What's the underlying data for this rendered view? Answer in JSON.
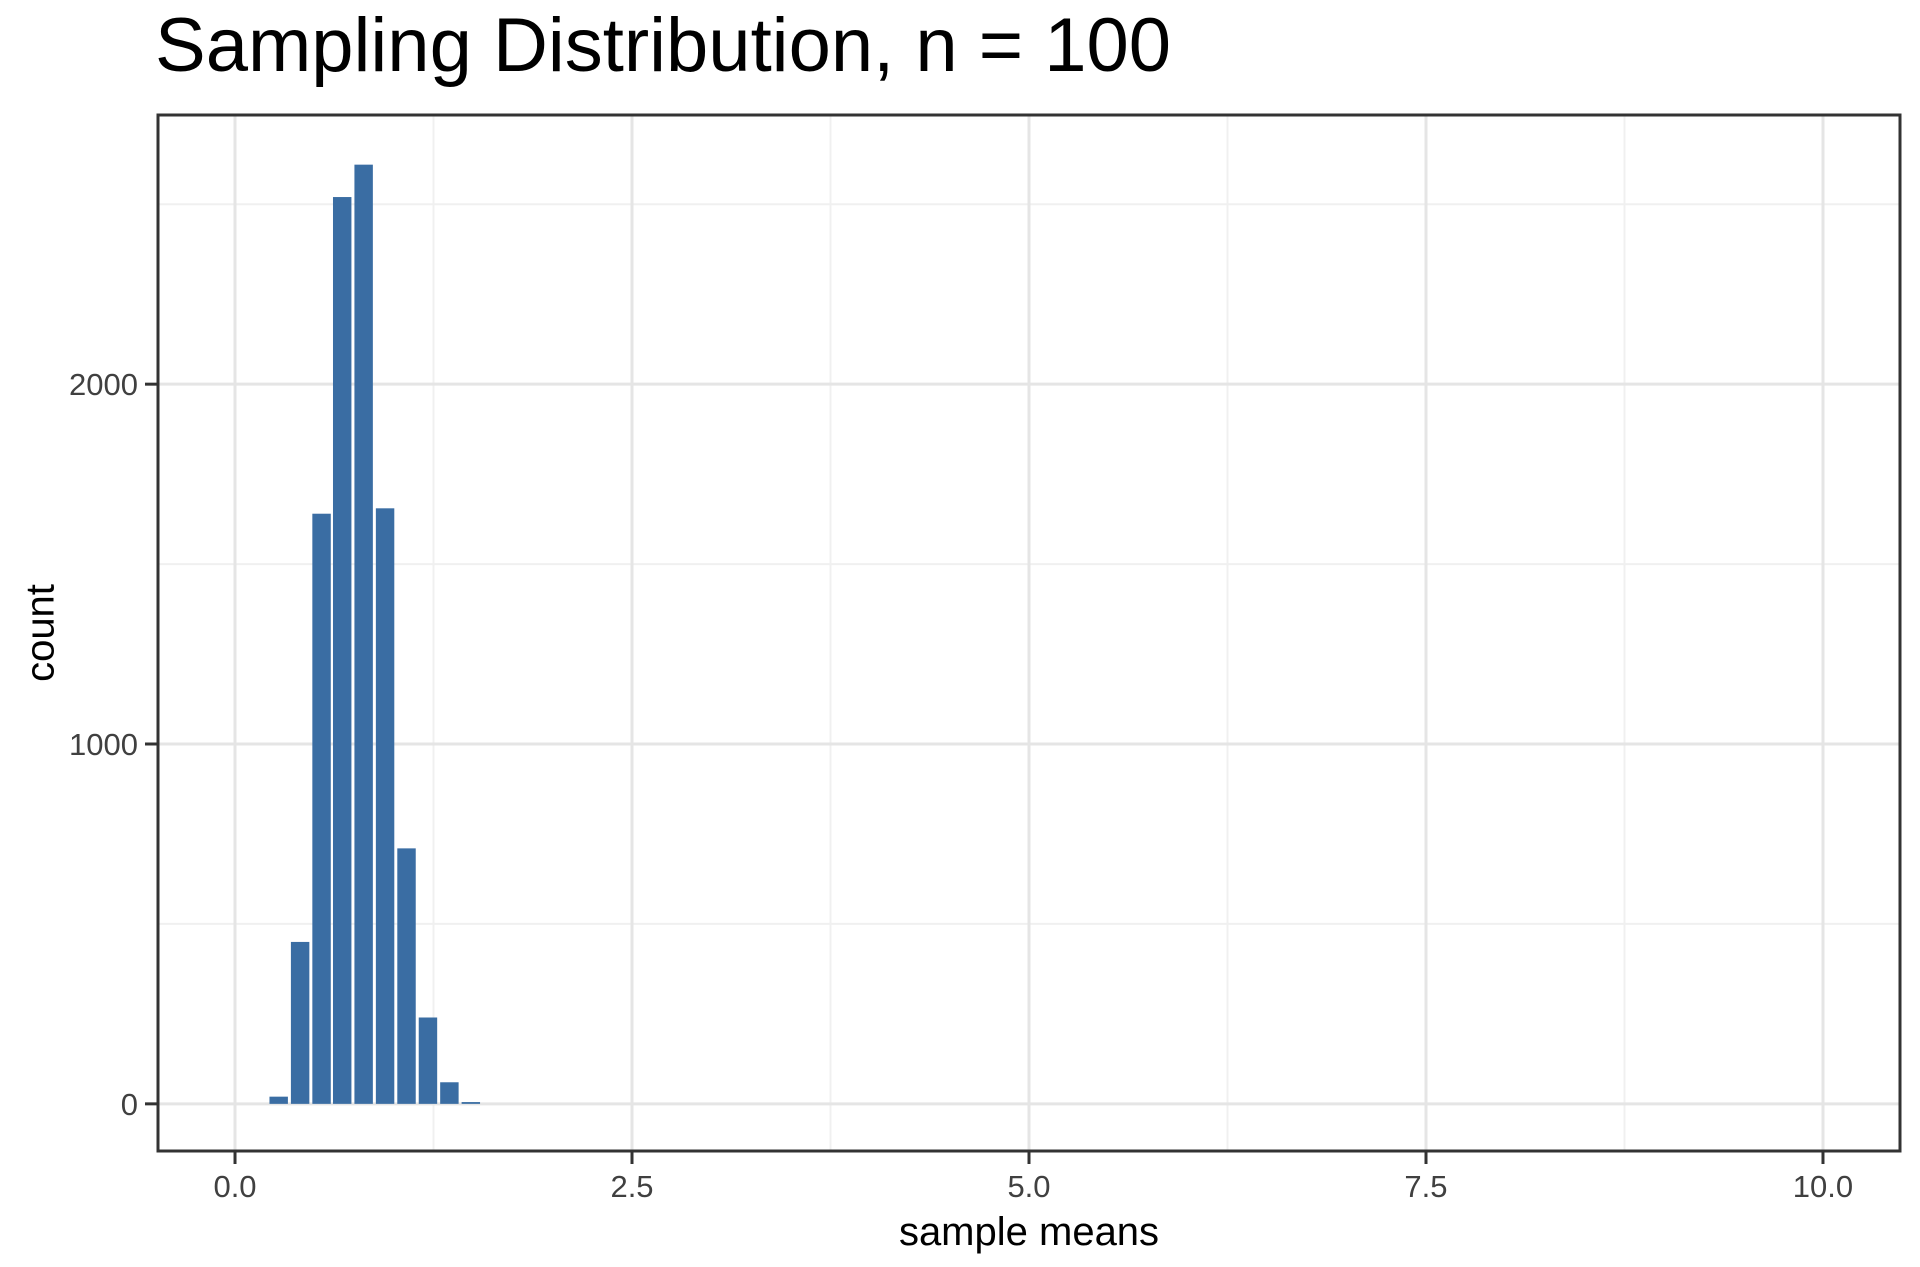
{
  "header": {
    "title": "Sampling Distribution, n = 100"
  },
  "chart_data": {
    "type": "bar",
    "subtype": "histogram",
    "title": "Sampling Distribution, n = 100",
    "xlabel": "sample means",
    "ylabel": "count",
    "grid": "on",
    "legend": "none",
    "xlim": [
      -0.485,
      10.485
    ],
    "ylim": [
      -131,
      2748
    ],
    "x_ticks": [
      {
        "value": 0.0,
        "label": "0.0"
      },
      {
        "value": 2.5,
        "label": "2.5"
      },
      {
        "value": 5.0,
        "label": "5.0"
      },
      {
        "value": 7.5,
        "label": "7.5"
      },
      {
        "value": 10.0,
        "label": "10.0"
      }
    ],
    "y_ticks": [
      {
        "value": 0,
        "label": "0"
      },
      {
        "value": 1000,
        "label": "1000"
      },
      {
        "value": 2000,
        "label": "2000"
      }
    ],
    "x_minor_gridlines": [
      1.25,
      3.75,
      6.25,
      8.75
    ],
    "y_minor_gridlines": [
      500,
      1500,
      2500
    ],
    "bin_width": 0.135,
    "bins": [
      {
        "center": 0.275,
        "count": 20
      },
      {
        "center": 0.41,
        "count": 450
      },
      {
        "center": 0.545,
        "count": 1640
      },
      {
        "center": 0.675,
        "count": 2520
      },
      {
        "center": 0.81,
        "count": 2610
      },
      {
        "center": 0.945,
        "count": 1655
      },
      {
        "center": 1.08,
        "count": 710
      },
      {
        "center": 1.215,
        "count": 240
      },
      {
        "center": 1.35,
        "count": 60
      },
      {
        "center": 1.485,
        "count": 5
      }
    ],
    "colors": {
      "bar_fill": "#3A6DA3",
      "bar_gap": "#FFFFFF",
      "panel_border": "#333333",
      "grid_major": "#E5E5E5",
      "grid_minor": "#F0F0F0",
      "tick_mark": "#333333",
      "tick_label": "#404040",
      "title_text": "#000000",
      "background": "#FFFFFF"
    }
  }
}
